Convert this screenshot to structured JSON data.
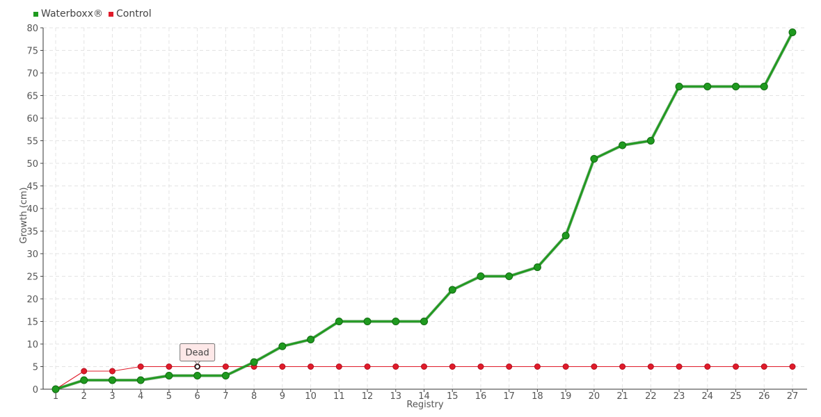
{
  "legend": {
    "items": [
      {
        "label": "Waterboxx®",
        "color": "#1f9a1f"
      },
      {
        "label": "Control",
        "color": "#e01b2a"
      }
    ]
  },
  "chart_data": {
    "type": "line",
    "title": "",
    "xlabel": "Registry",
    "ylabel": "Growth (cm)",
    "ylim": [
      0,
      80
    ],
    "yticks": [
      0,
      5,
      10,
      15,
      20,
      25,
      30,
      35,
      40,
      45,
      50,
      55,
      60,
      65,
      70,
      75,
      80
    ],
    "categories": [
      "1",
      "2",
      "3",
      "4",
      "5",
      "6",
      "7",
      "8",
      "9",
      "10",
      "11",
      "12",
      "13",
      "14",
      "15",
      "16",
      "17",
      "18",
      "19",
      "20",
      "21",
      "22",
      "23",
      "24",
      "25",
      "26",
      "27"
    ],
    "grid": true,
    "legend_position": "top-left",
    "series": [
      {
        "name": "Waterboxx®",
        "color": "#1f9a1f",
        "values": [
          0,
          2,
          2,
          2,
          3,
          3,
          3,
          6,
          9.5,
          11,
          15,
          15,
          15,
          15,
          22,
          25,
          25,
          27,
          34,
          51,
          54,
          55,
          67,
          67,
          67,
          67,
          79
        ]
      },
      {
        "name": "Control",
        "color": "#e01b2a",
        "values": [
          0,
          4,
          4,
          5,
          5,
          5,
          5,
          5,
          5,
          5,
          5,
          5,
          5,
          5,
          5,
          5,
          5,
          5,
          5,
          5,
          5,
          5,
          5,
          5,
          5,
          5,
          5
        ]
      }
    ],
    "annotations": [
      {
        "text": "Dead",
        "category": "6",
        "series": "Control",
        "value": 5
      }
    ]
  }
}
